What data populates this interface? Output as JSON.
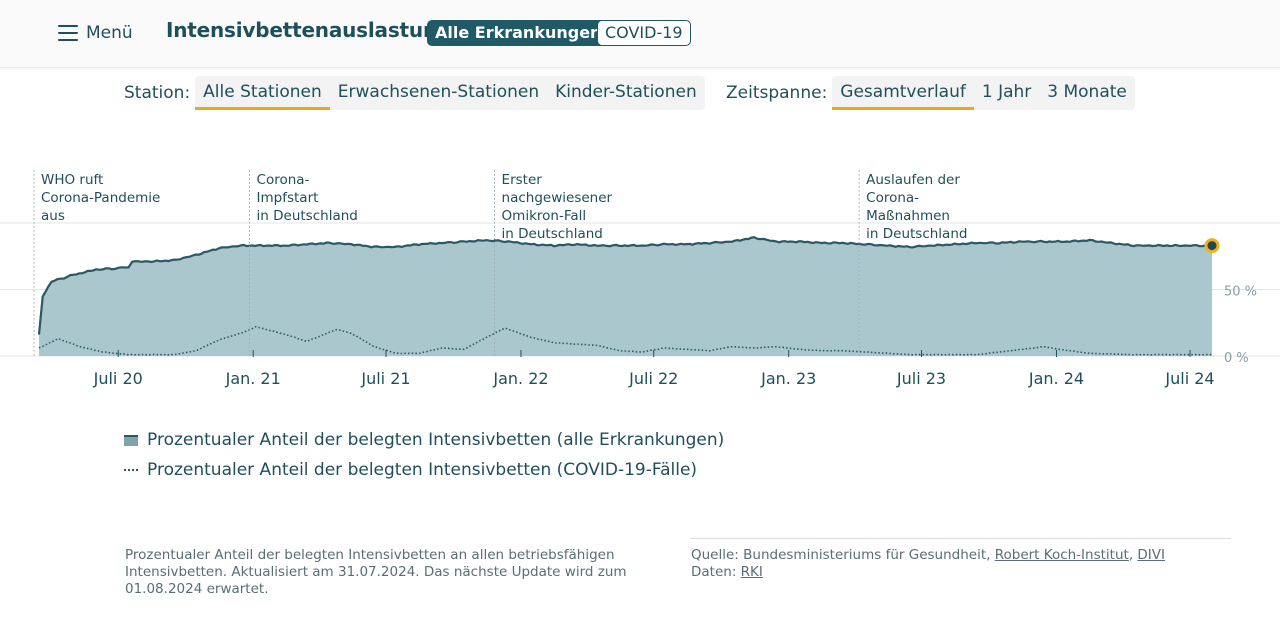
{
  "header": {
    "menu_label": "Menü",
    "title": "Intensivbettenauslastung",
    "pill_active": "Alle Erkrankungen",
    "pill_inactive": "COVID-19"
  },
  "filters": {
    "station": {
      "label": "Station:",
      "options": [
        "Alle Stationen",
        "Erwachsenen-Stationen",
        "Kinder-Stationen"
      ],
      "selected": "Alle Stationen"
    },
    "zeitspanne": {
      "label": "Zeitspanne:",
      "options": [
        "Gesamtverlauf",
        "1 Jahr",
        "3 Monate"
      ],
      "selected": "Gesamtverlauf"
    }
  },
  "chart_data": {
    "type": "area",
    "x_range": [
      "2020-03-15",
      "2024-07-31"
    ],
    "ylim": [
      0,
      100
    ],
    "y_ticks": [
      {
        "value": 0,
        "label": "0 %"
      },
      {
        "value": 50,
        "label": "50 %"
      }
    ],
    "x_ticks": [
      {
        "date": "2020-07-01",
        "label": "Juli 20"
      },
      {
        "date": "2021-01-01",
        "label": "Jan. 21"
      },
      {
        "date": "2021-07-01",
        "label": "Juli 21"
      },
      {
        "date": "2022-01-01",
        "label": "Jan. 22"
      },
      {
        "date": "2022-07-01",
        "label": "Juli 22"
      },
      {
        "date": "2023-01-01",
        "label": "Jan. 23"
      },
      {
        "date": "2023-07-01",
        "label": "Juli 23"
      },
      {
        "date": "2024-01-01",
        "label": "Jan. 24"
      },
      {
        "date": "2024-07-01",
        "label": "Juli 24"
      }
    ],
    "series": [
      {
        "name": "Prozentualer Anteil der belegten Intensivbetten (alle Erkrankungen)",
        "style": "area",
        "color": "#aac7ce",
        "line_color": "#2b5962",
        "points": [
          [
            "2020-03-15",
            16
          ],
          [
            "2020-03-20",
            45
          ],
          [
            "2020-04-01",
            56
          ],
          [
            "2020-05-01",
            61
          ],
          [
            "2020-06-01",
            65
          ],
          [
            "2020-07-01",
            66
          ],
          [
            "2020-07-15",
            67
          ],
          [
            "2020-07-20",
            71
          ],
          [
            "2020-08-15",
            71
          ],
          [
            "2020-09-15",
            72
          ],
          [
            "2020-10-15",
            76
          ],
          [
            "2020-11-15",
            81
          ],
          [
            "2020-12-15",
            83
          ],
          [
            "2021-01-15",
            83
          ],
          [
            "2021-02-15",
            83
          ],
          [
            "2021-03-15",
            84
          ],
          [
            "2021-04-15",
            85
          ],
          [
            "2021-05-15",
            84
          ],
          [
            "2021-06-15",
            82
          ],
          [
            "2021-07-15",
            82
          ],
          [
            "2021-08-15",
            84
          ],
          [
            "2021-09-15",
            85
          ],
          [
            "2021-10-15",
            86
          ],
          [
            "2021-11-15",
            87
          ],
          [
            "2021-12-15",
            86
          ],
          [
            "2022-01-15",
            84
          ],
          [
            "2022-02-15",
            83
          ],
          [
            "2022-03-15",
            84
          ],
          [
            "2022-04-15",
            83
          ],
          [
            "2022-05-15",
            83
          ],
          [
            "2022-06-15",
            83
          ],
          [
            "2022-07-15",
            84
          ],
          [
            "2022-08-15",
            84
          ],
          [
            "2022-09-15",
            85
          ],
          [
            "2022-10-15",
            86
          ],
          [
            "2022-11-15",
            89
          ],
          [
            "2022-12-15",
            86
          ],
          [
            "2023-01-15",
            86
          ],
          [
            "2023-02-15",
            85
          ],
          [
            "2023-03-15",
            85
          ],
          [
            "2023-04-15",
            84
          ],
          [
            "2023-05-15",
            83
          ],
          [
            "2023-06-15",
            82
          ],
          [
            "2023-07-15",
            83
          ],
          [
            "2023-08-15",
            84
          ],
          [
            "2023-09-15",
            85
          ],
          [
            "2023-10-15",
            85
          ],
          [
            "2023-11-15",
            86
          ],
          [
            "2023-12-15",
            86
          ],
          [
            "2024-01-15",
            86
          ],
          [
            "2024-02-15",
            87
          ],
          [
            "2024-03-15",
            85
          ],
          [
            "2024-04-15",
            83
          ],
          [
            "2024-05-15",
            83
          ],
          [
            "2024-06-15",
            83
          ],
          [
            "2024-07-31",
            83
          ]
        ]
      },
      {
        "name": "Prozentualer Anteil der belegten Intensivbetten (COVID-19-Fälle)",
        "style": "dotted",
        "color": "#2b5962",
        "points": [
          [
            "2020-03-15",
            6
          ],
          [
            "2020-04-10",
            13
          ],
          [
            "2020-05-10",
            7
          ],
          [
            "2020-06-10",
            3
          ],
          [
            "2020-07-15",
            1
          ],
          [
            "2020-09-15",
            1
          ],
          [
            "2020-10-15",
            4
          ],
          [
            "2020-11-15",
            12
          ],
          [
            "2020-12-20",
            18
          ],
          [
            "2021-01-05",
            22
          ],
          [
            "2021-02-15",
            16
          ],
          [
            "2021-03-15",
            11
          ],
          [
            "2021-04-25",
            20
          ],
          [
            "2021-05-15",
            17
          ],
          [
            "2021-06-15",
            7
          ],
          [
            "2021-07-15",
            2
          ],
          [
            "2021-08-15",
            2
          ],
          [
            "2021-09-15",
            6
          ],
          [
            "2021-10-15",
            5
          ],
          [
            "2021-11-15",
            14
          ],
          [
            "2021-12-10",
            21
          ],
          [
            "2022-01-15",
            14
          ],
          [
            "2022-02-15",
            10
          ],
          [
            "2022-03-15",
            9
          ],
          [
            "2022-04-15",
            8
          ],
          [
            "2022-05-15",
            4
          ],
          [
            "2022-06-15",
            3
          ],
          [
            "2022-07-15",
            6
          ],
          [
            "2022-08-15",
            5
          ],
          [
            "2022-09-15",
            4
          ],
          [
            "2022-10-15",
            7
          ],
          [
            "2022-11-15",
            6
          ],
          [
            "2022-12-15",
            7
          ],
          [
            "2023-01-15",
            5
          ],
          [
            "2023-02-15",
            4
          ],
          [
            "2023-03-15",
            4
          ],
          [
            "2023-04-15",
            3
          ],
          [
            "2023-06-15",
            1
          ],
          [
            "2023-09-15",
            1
          ],
          [
            "2023-10-15",
            3
          ],
          [
            "2023-11-15",
            5
          ],
          [
            "2023-12-15",
            7
          ],
          [
            "2024-01-05",
            5
          ],
          [
            "2024-02-15",
            2
          ],
          [
            "2024-04-15",
            1
          ],
          [
            "2024-07-31",
            1
          ]
        ]
      }
    ],
    "annotations": [
      {
        "date": "2020-03-11",
        "lines": [
          "WHO ruft",
          "Corona-Pandemie",
          "aus"
        ]
      },
      {
        "date": "2020-12-27",
        "lines": [
          "Corona-",
          "Impfstart",
          "in Deutschland"
        ]
      },
      {
        "date": "2021-11-26",
        "lines": [
          "Erster",
          "nachgewiesener",
          "Omikron-Fall",
          "in Deutschland"
        ]
      },
      {
        "date": "2023-04-07",
        "lines": [
          "Auslaufen der",
          "Corona-",
          "Maßnahmen",
          "in Deutschland"
        ]
      }
    ],
    "end_marker": {
      "date": "2024-07-31",
      "value": 83,
      "color": "#f0b21c"
    },
    "legend": [
      {
        "label": "Prozentualer Anteil der belegten Intensivbetten (alle Erkrankungen)",
        "swatch": "area"
      },
      {
        "label": "Prozentualer Anteil der belegten Intensivbetten (COVID-19-Fälle)",
        "swatch": "dotted"
      }
    ]
  },
  "footer": {
    "note": "Prozentualer Anteil der belegten Intensivbetten an allen betriebsfähigen Intensivbetten. Aktualisiert am 31.07.2024. Das nächste Update wird zum 01.08.2024 erwartet.",
    "source_prefix": "Quelle: Bundesministeriums für Gesundheit,",
    "source_link_rki": "Robert Koch-Institut",
    "source_sep": ",",
    "source_link_divi": "DIVI",
    "data_prefix": "Daten:",
    "data_link": "RKI"
  }
}
